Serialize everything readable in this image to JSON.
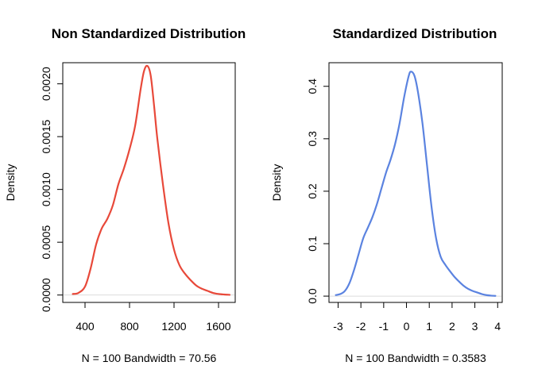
{
  "chart_data": [
    {
      "type": "line",
      "title": "Non Standardized Distribution",
      "xlabel": "N = 100   Bandwidth = 70.56",
      "ylabel": "Density",
      "xlim": [
        200,
        1750
      ],
      "ylim": [
        -7e-05,
        0.0022
      ],
      "xticks": [
        400,
        800,
        1200,
        1600
      ],
      "xtick_labels": [
        "400",
        "800",
        "1200",
        "1600"
      ],
      "yticks": [
        0.0,
        0.0005,
        0.001,
        0.0015,
        0.002
      ],
      "ytick_labels": [
        "0.0000",
        "0.0005",
        "0.0010",
        "0.0015",
        "0.0020"
      ],
      "color": "#E8493A",
      "grid": false,
      "series": [
        {
          "x": [
            290,
            340,
            400,
            450,
            500,
            550,
            600,
            650,
            700,
            750,
            800,
            850,
            900,
            930,
            960,
            990,
            1020,
            1050,
            1100,
            1150,
            1200,
            1250,
            1300,
            1350,
            1400,
            1450,
            1500,
            1550,
            1600,
            1650,
            1700
          ],
          "y": [
            1e-05,
            2e-05,
            8e-05,
            0.00025,
            0.00048,
            0.00063,
            0.00072,
            0.00085,
            0.00105,
            0.0012,
            0.00138,
            0.0016,
            0.00195,
            0.00212,
            0.00217,
            0.00208,
            0.0018,
            0.00148,
            0.00105,
            0.00068,
            0.00043,
            0.00028,
            0.0002,
            0.00014,
            9e-05,
            6e-05,
            4e-05,
            2e-05,
            1e-05,
            5e-06,
            2e-06
          ]
        }
      ]
    },
    {
      "type": "line",
      "title": "Standardized Distribution",
      "xlabel": "N = 100   Bandwidth = 0.3583",
      "ylabel": "Density",
      "xlim": [
        -3.4,
        4.2
      ],
      "ylim": [
        -0.012,
        0.445
      ],
      "xticks": [
        -3,
        -2,
        -1,
        0,
        1,
        2,
        3,
        4
      ],
      "xtick_labels": [
        "-3",
        "-2",
        "-1",
        "0",
        "1",
        "2",
        "3",
        "4"
      ],
      "yticks": [
        0.0,
        0.1,
        0.2,
        0.3,
        0.4
      ],
      "ytick_labels": [
        "0.0",
        "0.1",
        "0.2",
        "0.3",
        "0.4"
      ],
      "color": "#5B83E0",
      "grid": false,
      "series": [
        {
          "x": [
            -3.1,
            -2.9,
            -2.7,
            -2.5,
            -2.3,
            -2.1,
            -1.9,
            -1.7,
            -1.5,
            -1.3,
            -1.1,
            -0.9,
            -0.7,
            -0.5,
            -0.3,
            -0.1,
            0.1,
            0.2,
            0.35,
            0.5,
            0.7,
            0.9,
            1.1,
            1.3,
            1.5,
            1.7,
            1.9,
            2.1,
            2.3,
            2.5,
            2.7,
            2.9,
            3.1,
            3.3,
            3.5,
            3.7,
            3.9
          ],
          "y": [
            0.002,
            0.004,
            0.01,
            0.025,
            0.05,
            0.08,
            0.11,
            0.13,
            0.15,
            0.175,
            0.205,
            0.235,
            0.26,
            0.29,
            0.33,
            0.38,
            0.42,
            0.428,
            0.42,
            0.39,
            0.33,
            0.25,
            0.17,
            0.11,
            0.075,
            0.06,
            0.048,
            0.037,
            0.028,
            0.02,
            0.014,
            0.01,
            0.007,
            0.004,
            0.002,
            0.001,
            0.0005
          ]
        }
      ]
    }
  ]
}
